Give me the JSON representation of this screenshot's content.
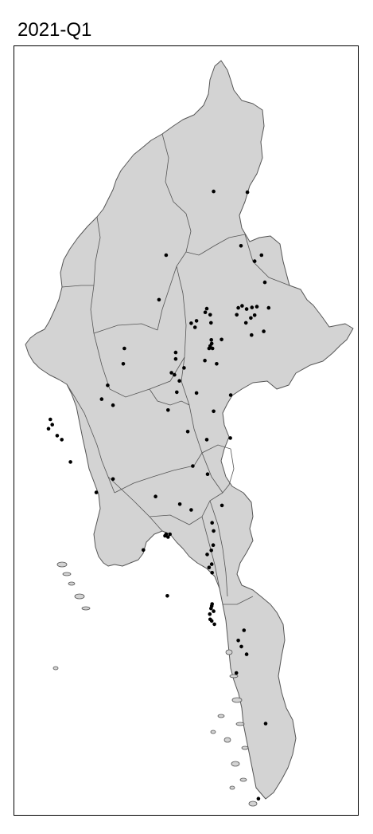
{
  "title": "2021-Q1",
  "colors": {
    "land": "#d3d3d3",
    "border": "#555555",
    "point": "#000000",
    "frame": "#000000"
  },
  "map_data": {
    "projection": "lon/lat",
    "lon_range": [
      92.15,
      101.2
    ],
    "lat_range": [
      9.6,
      28.55
    ],
    "points": [
      [
        98.29,
        24.95
      ],
      [
        97.4,
        24.97
      ],
      [
        98.12,
        23.63
      ],
      [
        98.66,
        23.4
      ],
      [
        98.48,
        23.25
      ],
      [
        98.75,
        22.73
      ],
      [
        96.15,
        23.4
      ],
      [
        95.96,
        22.3
      ],
      [
        98.15,
        22.15
      ],
      [
        98.05,
        22.1
      ],
      [
        98.27,
        22.07
      ],
      [
        98.54,
        22.13
      ],
      [
        98.41,
        22.11
      ],
      [
        98.85,
        22.1
      ],
      [
        98.01,
        21.93
      ],
      [
        98.48,
        21.92
      ],
      [
        98.38,
        21.85
      ],
      [
        98.25,
        21.73
      ],
      [
        98.72,
        21.52
      ],
      [
        98.4,
        21.43
      ],
      [
        96.95,
        21.78
      ],
      [
        97.33,
        21.73
      ],
      [
        97.31,
        21.93
      ],
      [
        97.22,
        22.08
      ],
      [
        97.18,
        21.99
      ],
      [
        96.81,
        21.72
      ],
      [
        96.91,
        21.62
      ],
      [
        97.34,
        21.31
      ],
      [
        97.61,
        21.32
      ],
      [
        97.37,
        21.1
      ],
      [
        97.28,
        21.1
      ],
      [
        97.31,
        21.16
      ],
      [
        97.35,
        21.22
      ],
      [
        97.17,
        20.8
      ],
      [
        97.48,
        20.72
      ],
      [
        96.4,
        20.84
      ],
      [
        96.62,
        20.62
      ],
      [
        96.37,
        20.45
      ],
      [
        96.29,
        20.5
      ],
      [
        96.43,
        20.02
      ],
      [
        96.2,
        19.58
      ],
      [
        96.95,
        20.0
      ],
      [
        97.85,
        19.95
      ],
      [
        96.72,
        19.05
      ],
      [
        97.22,
        18.85
      ],
      [
        97.84,
        18.89
      ],
      [
        97.24,
        18.0
      ],
      [
        96.51,
        17.26
      ],
      [
        96.81,
        17.12
      ],
      [
        97.62,
        17.23
      ],
      [
        97.36,
        16.8
      ],
      [
        97.4,
        16.6
      ],
      [
        97.39,
        16.25
      ],
      [
        97.34,
        16.12
      ],
      [
        97.23,
        16.02
      ],
      [
        97.35,
        15.78
      ],
      [
        97.28,
        15.7
      ],
      [
        97.36,
        15.57
      ],
      [
        96.18,
        15.0
      ],
      [
        95.87,
        17.45
      ],
      [
        97.36,
        14.8
      ],
      [
        97.35,
        14.75
      ],
      [
        97.33,
        14.69
      ],
      [
        97.4,
        14.62
      ],
      [
        97.3,
        14.55
      ],
      [
        97.31,
        14.42
      ],
      [
        97.35,
        14.38
      ],
      [
        97.42,
        14.3
      ],
      [
        98.2,
        14.15
      ],
      [
        98.05,
        13.9
      ],
      [
        98.13,
        13.75
      ],
      [
        98.27,
        13.56
      ],
      [
        98.0,
        13.1
      ],
      [
        98.77,
        11.85
      ],
      [
        98.58,
        10.0
      ],
      [
        96.4,
        21.0
      ],
      [
        96.5,
        20.3
      ],
      [
        95.05,
        21.1
      ],
      [
        95.02,
        20.72
      ],
      [
        94.61,
        20.19
      ],
      [
        94.45,
        19.85
      ],
      [
        93.1,
        19.35
      ],
      [
        93.15,
        19.22
      ],
      [
        93.05,
        19.12
      ],
      [
        93.28,
        18.95
      ],
      [
        93.4,
        18.85
      ],
      [
        93.63,
        18.3
      ],
      [
        94.31,
        17.55
      ],
      [
        94.75,
        17.88
      ],
      [
        95.55,
        16.13
      ],
      [
        94.75,
        19.7
      ],
      [
        96.85,
        18.2
      ],
      [
        97.4,
        19.55
      ],
      [
        96.15,
        16.52
      ],
      [
        96.12,
        16.48
      ],
      [
        96.2,
        16.45
      ],
      [
        96.25,
        16.52
      ]
    ]
  }
}
